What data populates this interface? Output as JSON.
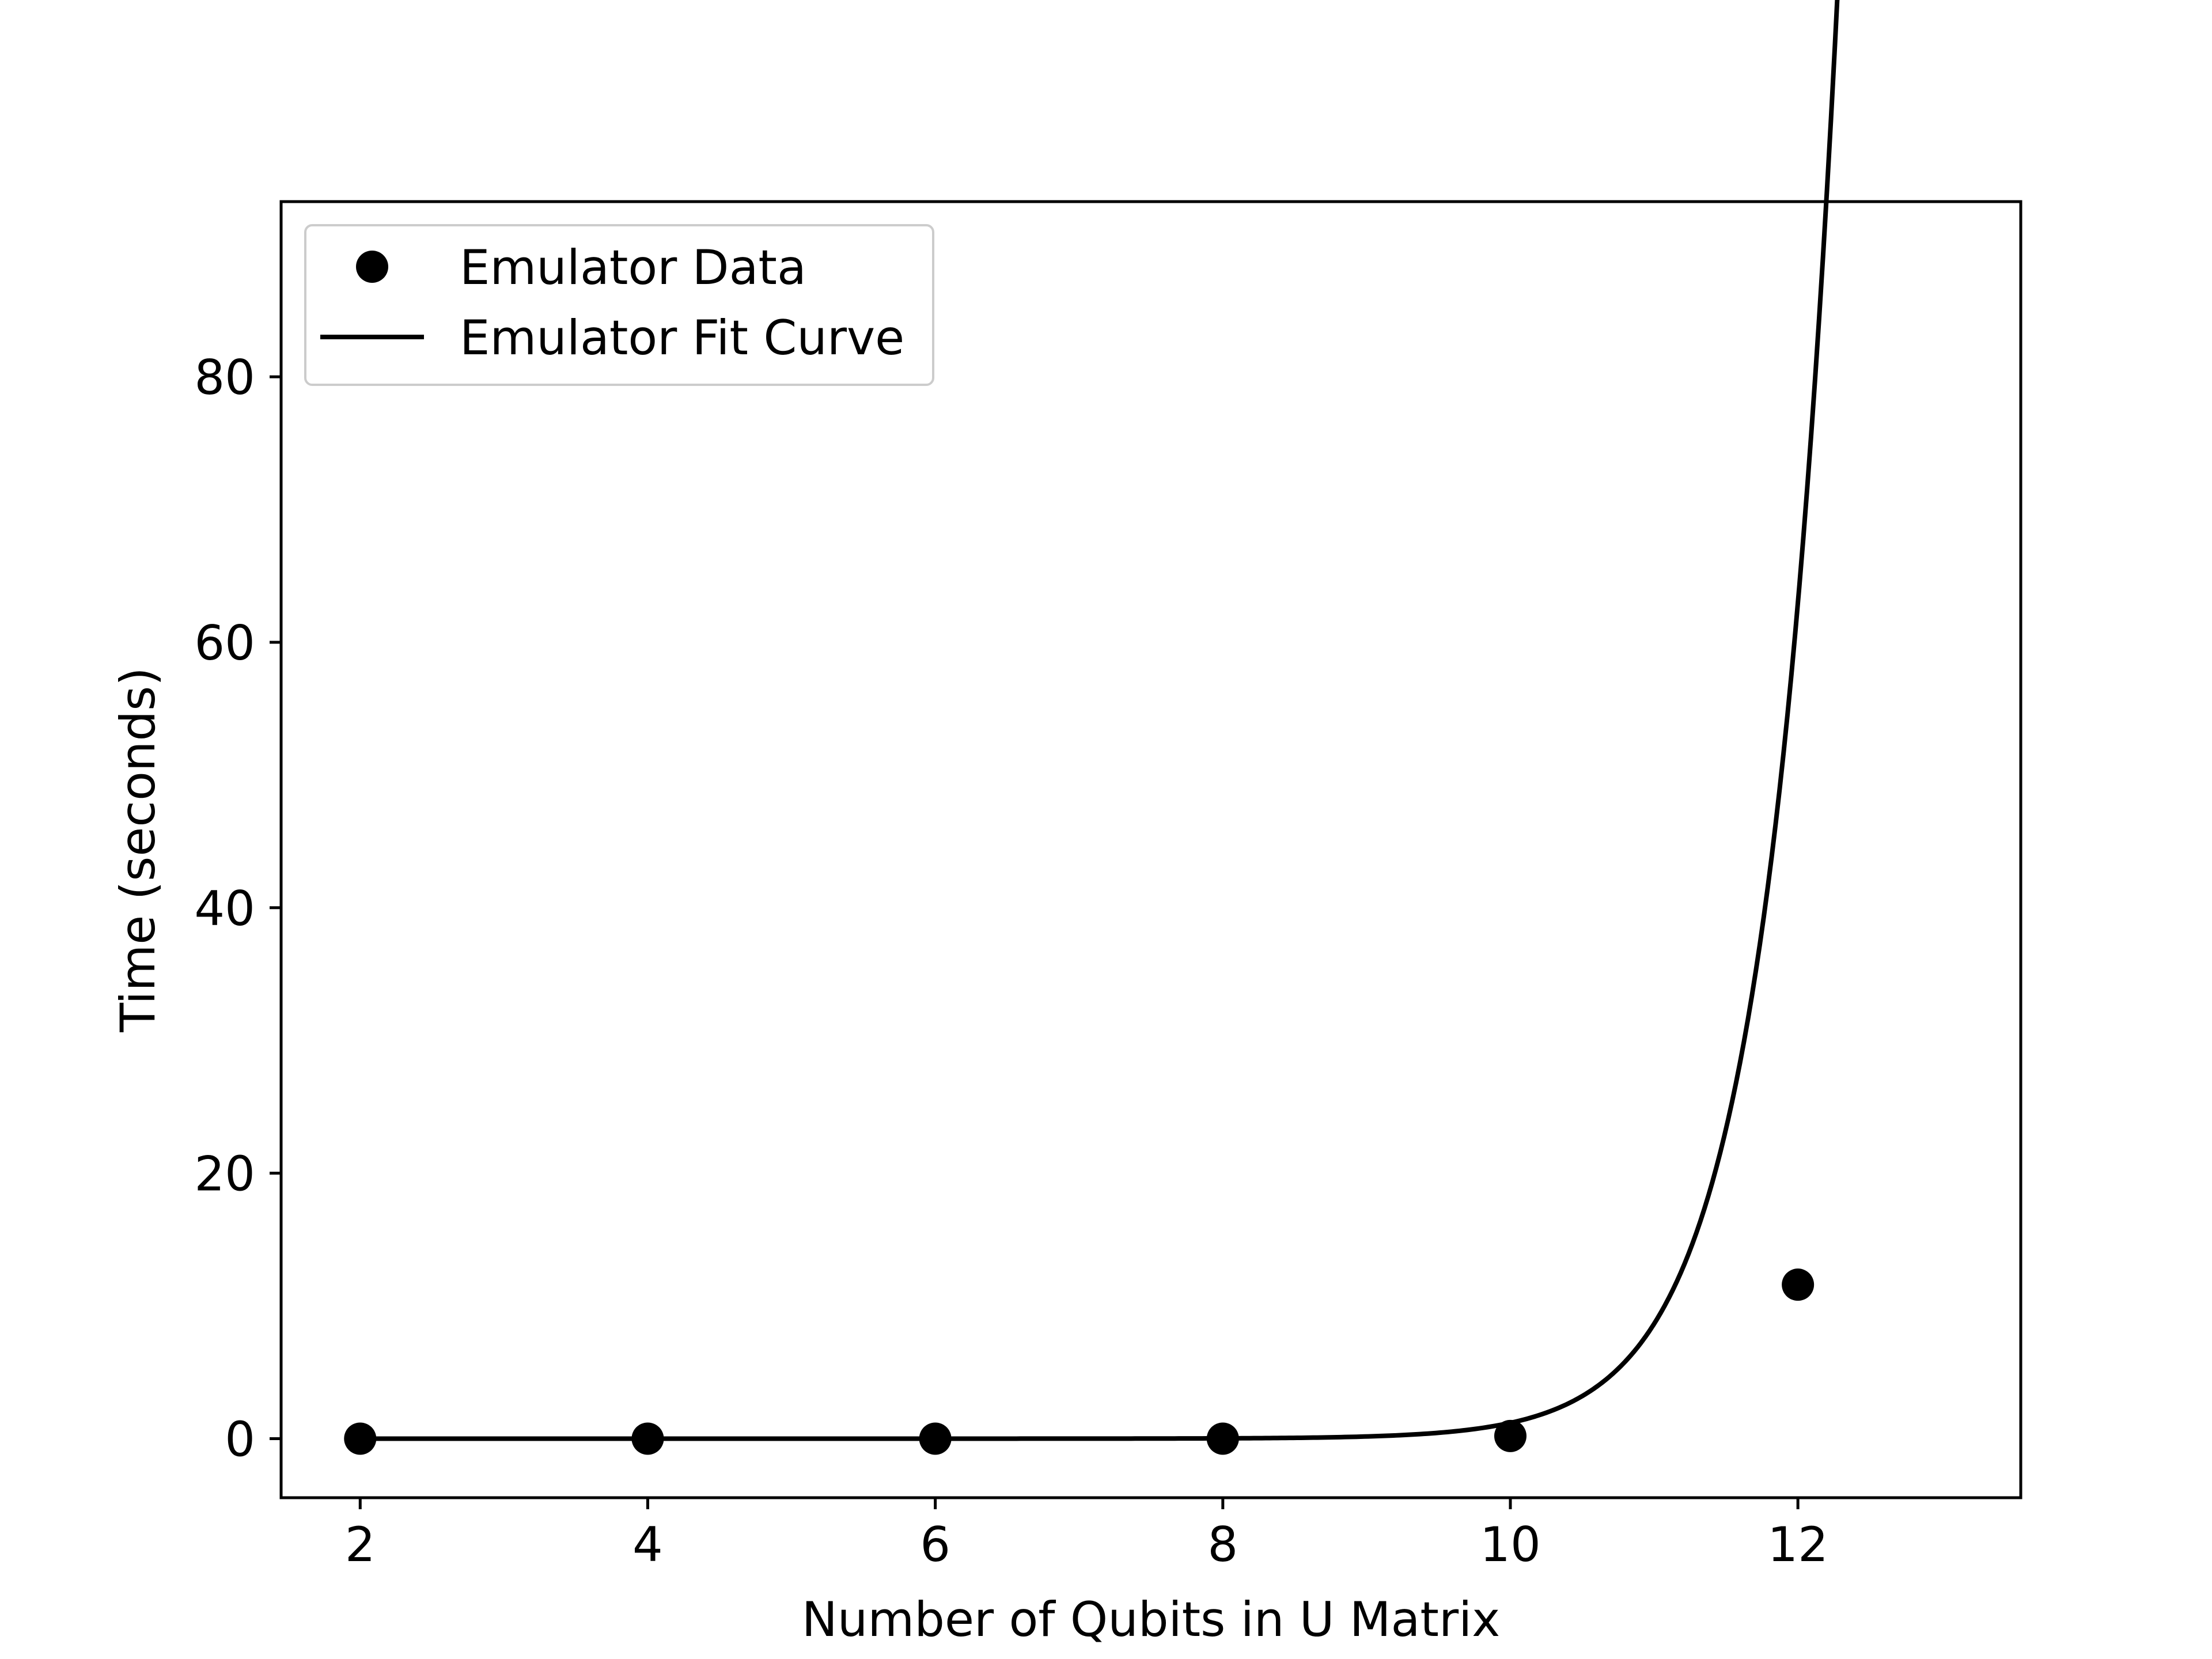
{
  "chart_data": {
    "type": "line",
    "title": "",
    "xlabel": "Number of Qubits in U Matrix",
    "ylabel": "Time (seconds)",
    "xlim": [
      1.45,
      13.55
    ],
    "ylim": [
      -4.45,
      93.2
    ],
    "x_ticks": [
      2,
      4,
      6,
      8,
      10,
      12
    ],
    "y_ticks": [
      0,
      20,
      40,
      60,
      80
    ],
    "grid": false,
    "legend_position": "top-left",
    "color": "#000000",
    "series": [
      {
        "name": "Emulator Data",
        "style": "markers",
        "x": [
          2,
          4,
          6,
          8,
          10,
          12
        ],
        "y": [
          0.0,
          0.0,
          0.0,
          0.0,
          0.2,
          11.6
        ]
      },
      {
        "name": "Emulator Fit Curve",
        "style": "line",
        "x_range": [
          2,
          13
        ],
        "model": "exponential",
        "a": 2.86e-09,
        "b": 1.9846
      }
    ]
  }
}
